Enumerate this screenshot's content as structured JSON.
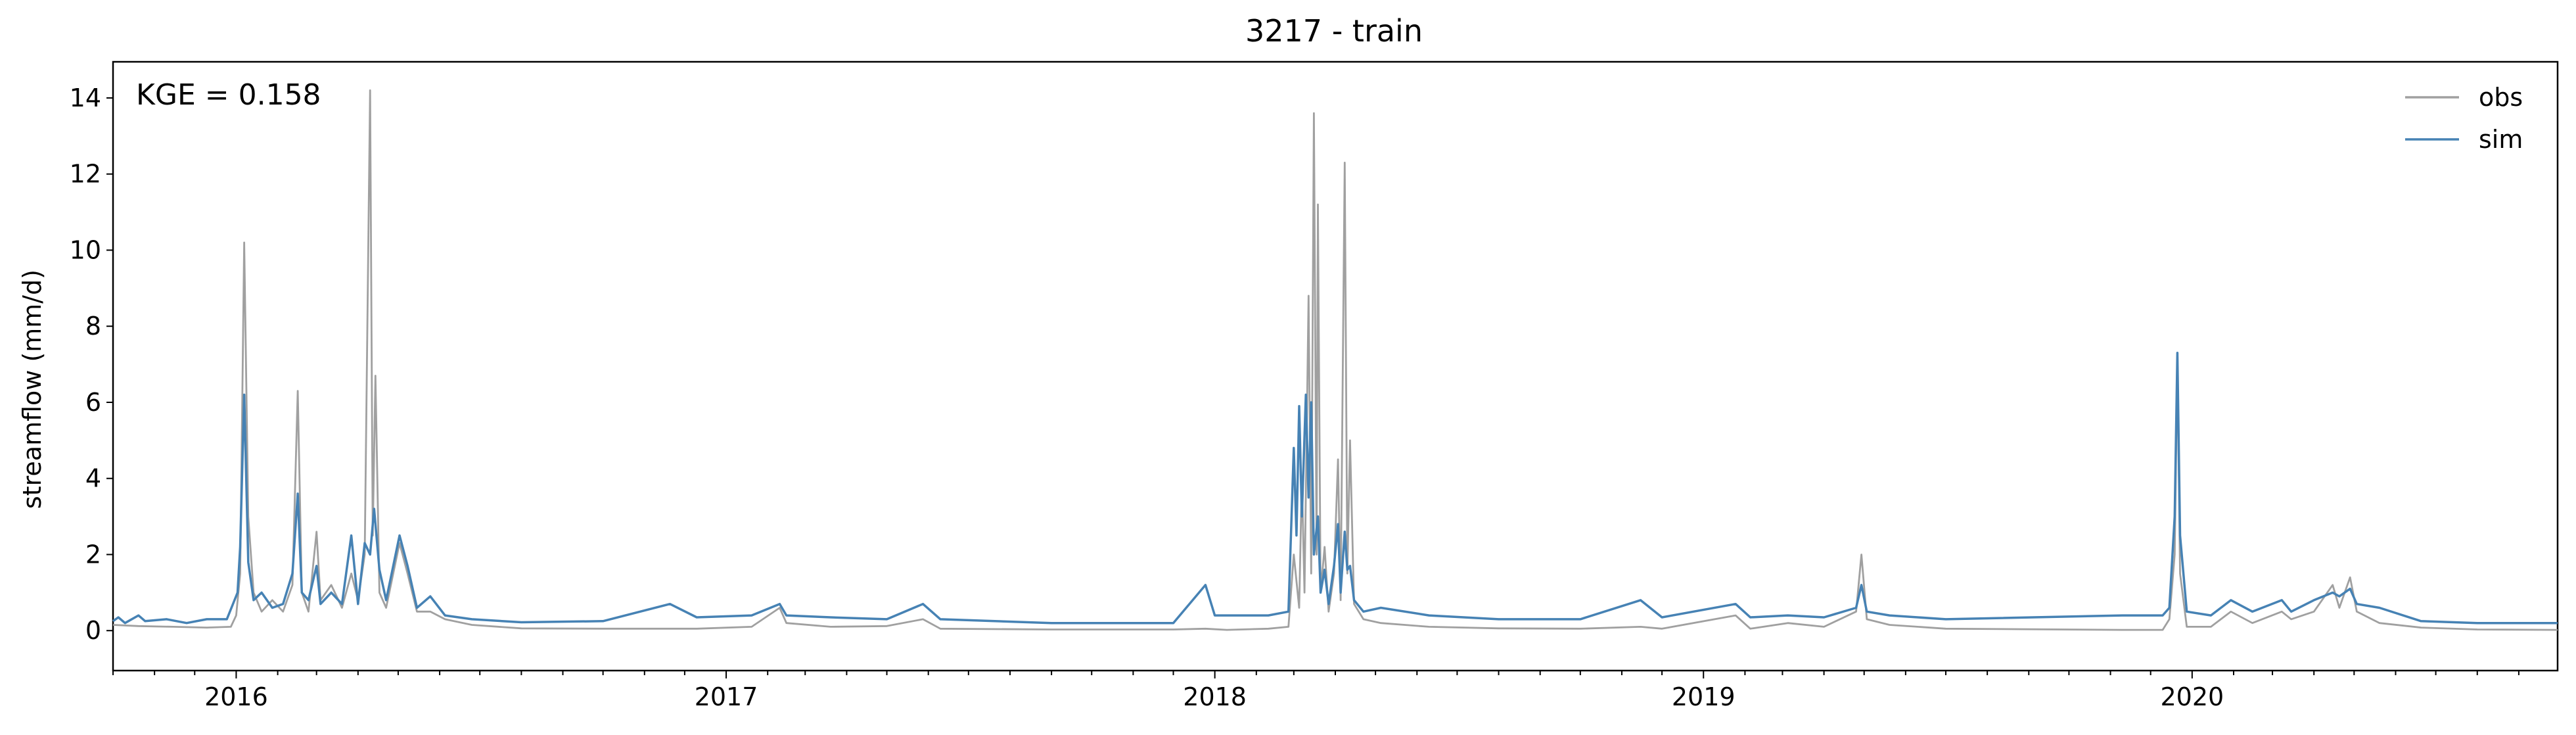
{
  "chart_data": {
    "type": "line",
    "title": "3217 - train",
    "xlabel": "",
    "ylabel": "streamflow (mm/d)",
    "annotation": "KGE = 0.158",
    "x_range": [
      "2015-10-01",
      "2020-09-30"
    ],
    "ylim": [
      -1.05,
      14.95
    ],
    "yticks": [
      0,
      2,
      4,
      6,
      8,
      10,
      12,
      14
    ],
    "xticks": [
      {
        "label": "2016",
        "date": "2016-01-01"
      },
      {
        "label": "2017",
        "date": "2017-01-01"
      },
      {
        "label": "2018",
        "date": "2018-01-01"
      },
      {
        "label": "2019",
        "date": "2019-01-01"
      },
      {
        "label": "2020",
        "date": "2020-01-01"
      }
    ],
    "legend": {
      "position": "top-right"
    },
    "grid": false,
    "series": [
      {
        "name": "obs",
        "color": "#a0a0a0",
        "points": [
          [
            "2015-10-01",
            0.15
          ],
          [
            "2015-10-20",
            0.12
          ],
          [
            "2015-11-15",
            0.1
          ],
          [
            "2015-12-10",
            0.08
          ],
          [
            "2015-12-28",
            0.1
          ],
          [
            "2016-01-01",
            0.4
          ],
          [
            "2016-01-04",
            1.5
          ],
          [
            "2016-01-07",
            10.2
          ],
          [
            "2016-01-10",
            3.0
          ],
          [
            "2016-01-14",
            1.0
          ],
          [
            "2016-01-20",
            0.5
          ],
          [
            "2016-01-28",
            0.8
          ],
          [
            "2016-02-05",
            0.5
          ],
          [
            "2016-02-12",
            1.2
          ],
          [
            "2016-02-16",
            6.3
          ],
          [
            "2016-02-19",
            1.0
          ],
          [
            "2016-02-24",
            0.5
          ],
          [
            "2016-03-01",
            2.6
          ],
          [
            "2016-03-04",
            0.8
          ],
          [
            "2016-03-12",
            1.2
          ],
          [
            "2016-03-20",
            0.6
          ],
          [
            "2016-03-27",
            1.5
          ],
          [
            "2016-04-01",
            0.8
          ],
          [
            "2016-04-06",
            2.0
          ],
          [
            "2016-04-10",
            14.2
          ],
          [
            "2016-04-12",
            2.5
          ],
          [
            "2016-04-14",
            6.7
          ],
          [
            "2016-04-17",
            1.0
          ],
          [
            "2016-04-22",
            0.6
          ],
          [
            "2016-05-02",
            2.3
          ],
          [
            "2016-05-08",
            1.5
          ],
          [
            "2016-05-15",
            0.5
          ],
          [
            "2016-05-25",
            0.5
          ],
          [
            "2016-06-05",
            0.3
          ],
          [
            "2016-06-25",
            0.15
          ],
          [
            "2016-08-01",
            0.06
          ],
          [
            "2016-10-01",
            0.05
          ],
          [
            "2016-12-10",
            0.05
          ],
          [
            "2017-01-20",
            0.1
          ],
          [
            "2017-02-10",
            0.6
          ],
          [
            "2017-02-15",
            0.2
          ],
          [
            "2017-03-20",
            0.1
          ],
          [
            "2017-05-01",
            0.12
          ],
          [
            "2017-05-28",
            0.3
          ],
          [
            "2017-06-10",
            0.05
          ],
          [
            "2017-09-01",
            0.03
          ],
          [
            "2017-12-01",
            0.03
          ],
          [
            "2017-12-25",
            0.05
          ],
          [
            "2018-01-10",
            0.02
          ],
          [
            "2018-02-10",
            0.05
          ],
          [
            "2018-02-25",
            0.1
          ],
          [
            "2018-03-01",
            2.0
          ],
          [
            "2018-03-05",
            0.6
          ],
          [
            "2018-03-07",
            4.0
          ],
          [
            "2018-03-09",
            1.0
          ],
          [
            "2018-03-12",
            8.8
          ],
          [
            "2018-03-14",
            1.5
          ],
          [
            "2018-03-16",
            13.6
          ],
          [
            "2018-03-18",
            2.0
          ],
          [
            "2018-03-19",
            11.2
          ],
          [
            "2018-03-21",
            1.0
          ],
          [
            "2018-03-24",
            2.2
          ],
          [
            "2018-03-27",
            0.5
          ],
          [
            "2018-03-31",
            1.5
          ],
          [
            "2018-04-03",
            4.5
          ],
          [
            "2018-04-05",
            0.8
          ],
          [
            "2018-04-08",
            12.3
          ],
          [
            "2018-04-10",
            1.5
          ],
          [
            "2018-04-12",
            5.0
          ],
          [
            "2018-04-15",
            0.7
          ],
          [
            "2018-04-22",
            0.3
          ],
          [
            "2018-05-05",
            0.2
          ],
          [
            "2018-06-10",
            0.1
          ],
          [
            "2018-08-01",
            0.06
          ],
          [
            "2018-10-01",
            0.05
          ],
          [
            "2018-11-15",
            0.1
          ],
          [
            "2018-12-01",
            0.05
          ],
          [
            "2019-01-25",
            0.4
          ],
          [
            "2019-02-05",
            0.05
          ],
          [
            "2019-03-05",
            0.2
          ],
          [
            "2019-04-01",
            0.1
          ],
          [
            "2019-04-25",
            0.5
          ],
          [
            "2019-04-29",
            2.0
          ],
          [
            "2019-05-03",
            0.3
          ],
          [
            "2019-05-20",
            0.15
          ],
          [
            "2019-07-01",
            0.05
          ],
          [
            "2019-11-10",
            0.02
          ],
          [
            "2019-12-10",
            0.02
          ],
          [
            "2019-12-15",
            0.3
          ],
          [
            "2019-12-19",
            2.0
          ],
          [
            "2019-12-21",
            7.0
          ],
          [
            "2019-12-23",
            1.5
          ],
          [
            "2019-12-28",
            0.1
          ],
          [
            "2020-01-15",
            0.1
          ],
          [
            "2020-01-30",
            0.5
          ],
          [
            "2020-02-15",
            0.2
          ],
          [
            "2020-03-08",
            0.5
          ],
          [
            "2020-03-15",
            0.3
          ],
          [
            "2020-04-01",
            0.5
          ],
          [
            "2020-04-15",
            1.2
          ],
          [
            "2020-04-20",
            0.6
          ],
          [
            "2020-04-28",
            1.4
          ],
          [
            "2020-05-03",
            0.5
          ],
          [
            "2020-05-20",
            0.2
          ],
          [
            "2020-06-20",
            0.08
          ],
          [
            "2020-08-01",
            0.03
          ],
          [
            "2020-09-30",
            0.02
          ]
        ]
      },
      {
        "name": "sim",
        "color": "#4682b4",
        "points": [
          [
            "2015-10-01",
            0.25
          ],
          [
            "2015-10-05",
            0.35
          ],
          [
            "2015-10-10",
            0.2
          ],
          [
            "2015-10-20",
            0.4
          ],
          [
            "2015-10-25",
            0.25
          ],
          [
            "2015-11-10",
            0.3
          ],
          [
            "2015-11-25",
            0.2
          ],
          [
            "2015-12-10",
            0.3
          ],
          [
            "2015-12-25",
            0.3
          ],
          [
            "2016-01-02",
            1.0
          ],
          [
            "2016-01-04",
            2.2
          ],
          [
            "2016-01-07",
            6.2
          ],
          [
            "2016-01-10",
            1.8
          ],
          [
            "2016-01-14",
            0.8
          ],
          [
            "2016-01-20",
            1.0
          ],
          [
            "2016-01-28",
            0.6
          ],
          [
            "2016-02-05",
            0.7
          ],
          [
            "2016-02-12",
            1.5
          ],
          [
            "2016-02-16",
            3.6
          ],
          [
            "2016-02-19",
            1.0
          ],
          [
            "2016-02-24",
            0.8
          ],
          [
            "2016-03-01",
            1.7
          ],
          [
            "2016-03-04",
            0.7
          ],
          [
            "2016-03-12",
            1.0
          ],
          [
            "2016-03-20",
            0.7
          ],
          [
            "2016-03-27",
            2.5
          ],
          [
            "2016-04-01",
            0.7
          ],
          [
            "2016-04-06",
            2.3
          ],
          [
            "2016-04-10",
            2.0
          ],
          [
            "2016-04-13",
            3.2
          ],
          [
            "2016-04-17",
            1.6
          ],
          [
            "2016-04-22",
            0.8
          ],
          [
            "2016-05-02",
            2.5
          ],
          [
            "2016-05-08",
            1.7
          ],
          [
            "2016-05-15",
            0.6
          ],
          [
            "2016-05-25",
            0.9
          ],
          [
            "2016-06-05",
            0.4
          ],
          [
            "2016-06-25",
            0.3
          ],
          [
            "2016-08-01",
            0.22
          ],
          [
            "2016-10-01",
            0.25
          ],
          [
            "2016-11-20",
            0.7
          ],
          [
            "2016-12-10",
            0.35
          ],
          [
            "2017-01-20",
            0.4
          ],
          [
            "2017-02-10",
            0.7
          ],
          [
            "2017-02-15",
            0.4
          ],
          [
            "2017-03-20",
            0.35
          ],
          [
            "2017-05-01",
            0.3
          ],
          [
            "2017-05-28",
            0.7
          ],
          [
            "2017-06-10",
            0.3
          ],
          [
            "2017-09-01",
            0.2
          ],
          [
            "2017-12-01",
            0.2
          ],
          [
            "2017-12-25",
            1.2
          ],
          [
            "2018-01-01",
            0.4
          ],
          [
            "2018-01-10",
            0.4
          ],
          [
            "2018-02-10",
            0.4
          ],
          [
            "2018-02-25",
            0.5
          ],
          [
            "2018-03-01",
            4.8
          ],
          [
            "2018-03-03",
            2.5
          ],
          [
            "2018-03-05",
            5.9
          ],
          [
            "2018-03-07",
            3.0
          ],
          [
            "2018-03-10",
            6.2
          ],
          [
            "2018-03-12",
            3.5
          ],
          [
            "2018-03-14",
            6.0
          ],
          [
            "2018-03-16",
            2.0
          ],
          [
            "2018-03-19",
            3.0
          ],
          [
            "2018-03-21",
            1.0
          ],
          [
            "2018-03-24",
            1.6
          ],
          [
            "2018-03-27",
            0.7
          ],
          [
            "2018-03-31",
            1.7
          ],
          [
            "2018-04-03",
            2.8
          ],
          [
            "2018-04-05",
            1.0
          ],
          [
            "2018-04-08",
            2.6
          ],
          [
            "2018-04-10",
            1.6
          ],
          [
            "2018-04-12",
            1.7
          ],
          [
            "2018-04-15",
            0.8
          ],
          [
            "2018-04-22",
            0.5
          ],
          [
            "2018-05-05",
            0.6
          ],
          [
            "2018-06-10",
            0.4
          ],
          [
            "2018-08-01",
            0.3
          ],
          [
            "2018-10-01",
            0.3
          ],
          [
            "2018-11-15",
            0.8
          ],
          [
            "2018-12-01",
            0.35
          ],
          [
            "2019-01-25",
            0.7
          ],
          [
            "2019-02-05",
            0.35
          ],
          [
            "2019-03-05",
            0.4
          ],
          [
            "2019-04-01",
            0.35
          ],
          [
            "2019-04-25",
            0.6
          ],
          [
            "2019-04-29",
            1.2
          ],
          [
            "2019-05-03",
            0.5
          ],
          [
            "2019-05-20",
            0.4
          ],
          [
            "2019-07-01",
            0.3
          ],
          [
            "2019-11-10",
            0.4
          ],
          [
            "2019-12-10",
            0.4
          ],
          [
            "2019-12-15",
            0.6
          ],
          [
            "2019-12-19",
            3.0
          ],
          [
            "2019-12-21",
            7.3
          ],
          [
            "2019-12-23",
            2.5
          ],
          [
            "2019-12-28",
            0.5
          ],
          [
            "2020-01-15",
            0.4
          ],
          [
            "2020-01-30",
            0.8
          ],
          [
            "2020-02-15",
            0.5
          ],
          [
            "2020-03-08",
            0.8
          ],
          [
            "2020-03-15",
            0.5
          ],
          [
            "2020-04-01",
            0.8
          ],
          [
            "2020-04-15",
            1.0
          ],
          [
            "2020-04-20",
            0.9
          ],
          [
            "2020-04-28",
            1.1
          ],
          [
            "2020-05-03",
            0.7
          ],
          [
            "2020-05-20",
            0.6
          ],
          [
            "2020-06-20",
            0.25
          ],
          [
            "2020-08-01",
            0.2
          ],
          [
            "2020-09-30",
            0.2
          ]
        ]
      }
    ]
  }
}
